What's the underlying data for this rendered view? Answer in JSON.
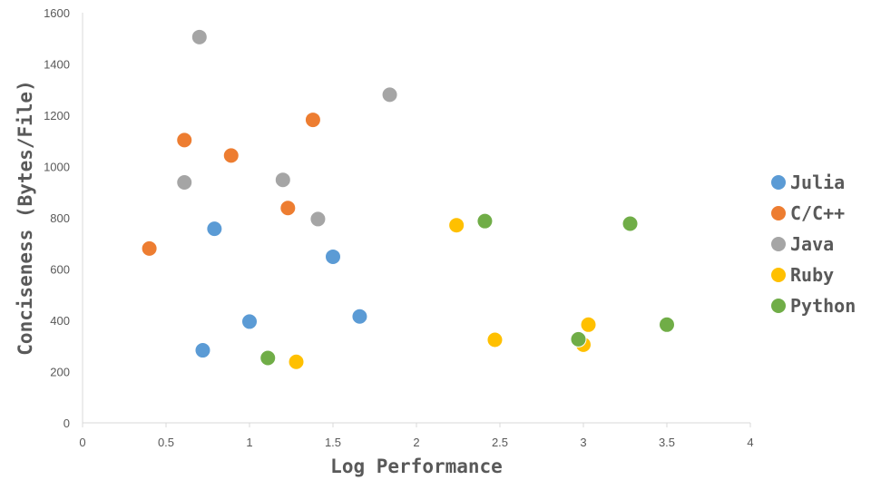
{
  "chart_data": {
    "type": "scatter",
    "xlabel": "Log Performance",
    "ylabel": "Conciseness (Bytes/File)",
    "xlim": [
      0,
      4
    ],
    "ylim": [
      0,
      1600
    ],
    "xticks": [
      0,
      0.5,
      1,
      1.5,
      2,
      2.5,
      3,
      3.5,
      4
    ],
    "xtick_labels": [
      "0",
      "0.5",
      "1",
      "1.5",
      "2",
      "2.5",
      "3",
      "3.5",
      "4"
    ],
    "yticks": [
      0,
      200,
      400,
      600,
      800,
      1000,
      1200,
      1400,
      1600
    ],
    "ytick_labels": [
      "0",
      "200",
      "400",
      "600",
      "800",
      "1000",
      "1200",
      "1400",
      "1600"
    ],
    "grid": false,
    "legend": "right",
    "series": [
      {
        "name": "Julia",
        "color": "#5b9bd5",
        "points": [
          [
            0.72,
            283
          ],
          [
            0.79,
            757
          ],
          [
            1.0,
            395
          ],
          [
            1.5,
            648
          ],
          [
            1.66,
            415
          ]
        ]
      },
      {
        "name": "C/C++",
        "color": "#ed7d31",
        "points": [
          [
            0.4,
            680
          ],
          [
            0.61,
            1103
          ],
          [
            0.89,
            1043
          ],
          [
            1.23,
            838
          ],
          [
            1.38,
            1182
          ]
        ]
      },
      {
        "name": "Java",
        "color": "#a5a5a5",
        "points": [
          [
            0.61,
            938
          ],
          [
            0.7,
            1505
          ],
          [
            1.2,
            948
          ],
          [
            1.41,
            795
          ],
          [
            1.84,
            1280
          ]
        ]
      },
      {
        "name": "Ruby",
        "color": "#ffc000",
        "points": [
          [
            1.28,
            238
          ],
          [
            2.24,
            771
          ],
          [
            2.47,
            324
          ],
          [
            3.0,
            305
          ],
          [
            3.03,
            383
          ]
        ]
      },
      {
        "name": "Python",
        "color": "#70ad47",
        "points": [
          [
            1.11,
            253
          ],
          [
            2.41,
            787
          ],
          [
            2.97,
            326
          ],
          [
            3.28,
            777
          ],
          [
            3.5,
            383
          ]
        ]
      }
    ]
  }
}
